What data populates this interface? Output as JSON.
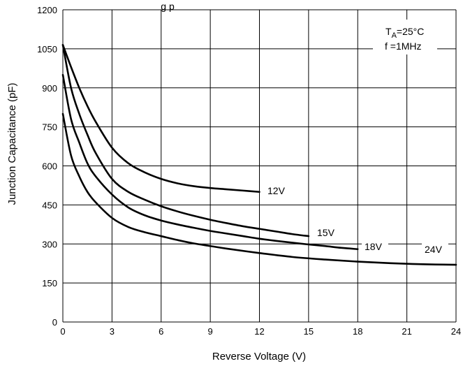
{
  "chart_data": {
    "type": "line",
    "title_fragment": "g   p",
    "xlabel": "Reverse Voltage (V)",
    "ylabel": "Junction Capacitance (pF)",
    "xlim": [
      0,
      24
    ],
    "ylim": [
      0,
      1200
    ],
    "xticks": [
      0,
      3,
      6,
      9,
      12,
      15,
      18,
      21,
      24
    ],
    "yticks": [
      0,
      150,
      300,
      450,
      600,
      750,
      900,
      1050,
      1200
    ],
    "grid": true,
    "conditions": {
      "ta_prefix": "T",
      "ta_sub": "A",
      "ta_value": "=25°C",
      "freq": "f =1MHz"
    },
    "series": [
      {
        "name": "12V",
        "x": [
          0,
          0.5,
          1,
          1.5,
          2,
          3,
          4,
          5,
          6,
          7,
          8,
          9,
          10,
          11,
          12
        ],
        "y": [
          1065,
          980,
          900,
          830,
          770,
          670,
          610,
          575,
          550,
          533,
          522,
          515,
          510,
          505,
          500
        ]
      },
      {
        "name": "15V",
        "x": [
          0,
          0.5,
          1,
          1.5,
          2,
          3,
          4,
          5,
          6,
          7,
          8,
          9,
          10,
          11,
          12,
          13,
          14,
          15
        ],
        "y": [
          1065,
          900,
          800,
          720,
          650,
          550,
          500,
          470,
          445,
          425,
          408,
          393,
          380,
          368,
          358,
          348,
          338,
          330
        ]
      },
      {
        "name": "18V",
        "x": [
          0,
          0.5,
          1,
          1.5,
          2,
          3,
          4,
          5,
          6,
          7,
          8,
          9,
          10,
          11,
          12,
          13,
          14,
          15,
          16,
          17,
          18
        ],
        "y": [
          950,
          780,
          690,
          610,
          560,
          490,
          440,
          410,
          390,
          375,
          362,
          350,
          340,
          330,
          320,
          312,
          305,
          298,
          292,
          285,
          280
        ]
      },
      {
        "name": "24V",
        "x": [
          0,
          0.5,
          1,
          1.5,
          2,
          3,
          4,
          5,
          6,
          7,
          8,
          9,
          10,
          12,
          14,
          16,
          18,
          20,
          22,
          24
        ],
        "y": [
          800,
          640,
          560,
          500,
          460,
          400,
          365,
          345,
          330,
          315,
          302,
          292,
          282,
          265,
          250,
          240,
          232,
          226,
          222,
          220
        ]
      }
    ]
  }
}
